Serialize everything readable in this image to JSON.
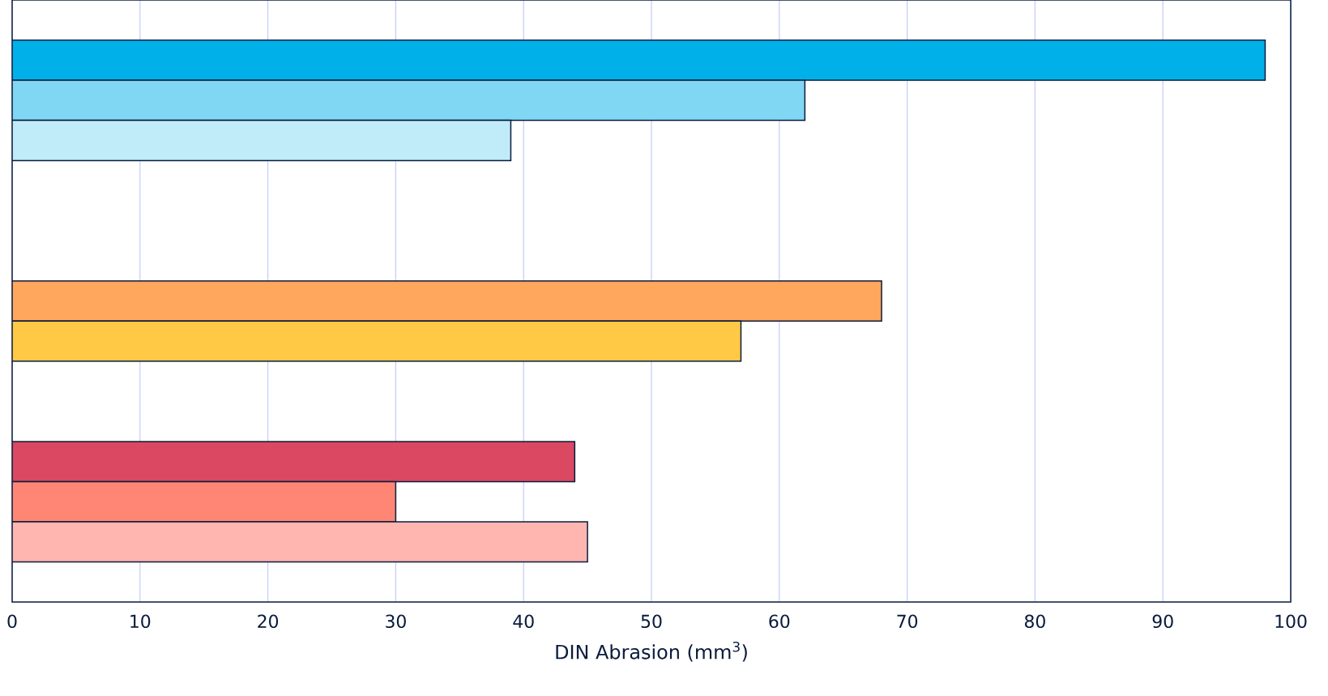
{
  "chart_data": {
    "type": "bar",
    "orientation": "horizontal",
    "xlabel": "DIN Abrasion (mm$^{3}$)",
    "categories": [
      null,
      null,
      null,
      null,
      null,
      null,
      null,
      null,
      null,
      null,
      null,
      null,
      null,
      null,
      null
    ],
    "values": [
      null,
      98,
      62,
      39,
      null,
      null,
      null,
      68,
      57,
      null,
      null,
      44,
      30,
      45,
      null
    ],
    "colors": [
      null,
      "#00b0e8",
      "#80d7f3",
      "#c0ebf8",
      null,
      null,
      null,
      "#ffa75c",
      "#ffc845",
      null,
      null,
      "#da4862",
      "#ff8674",
      "#ffb6b0",
      null
    ],
    "xlim": [
      0,
      100
    ],
    "xticks": [
      0,
      10,
      20,
      30,
      40,
      50,
      60,
      70,
      80,
      90,
      100
    ],
    "grid": "x"
  }
}
